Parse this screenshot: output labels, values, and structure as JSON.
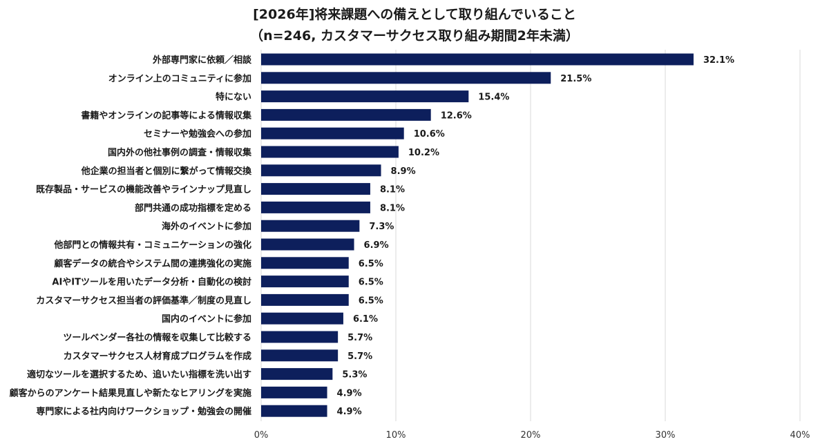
{
  "chart_data": {
    "type": "bar",
    "orientation": "horizontal",
    "title": "[2026年]将来課題への備えとして取り組んでいること",
    "subtitle": "（n=246, カスタマーサクセス取り組み期間2年未満）",
    "categories": [
      "外部専門家に依頼／相談",
      "オンライン上のコミュニティに参加",
      "特にない",
      "書籍やオンラインの記事等による情報収集",
      "セミナーや勉強会への参加",
      "国内外の他社事例の調査・情報収集",
      "他企業の担当者と個別に繋がって情報交換",
      "既存製品・サービスの機能改善やラインナップ見直し",
      "部門共通の成功指標を定める",
      "海外のイベントに参加",
      "他部門との情報共有・コミュニケーションの強化",
      "顧客データの統合やシステム間の連携強化の実施",
      "AIやITツールを用いたデータ分析・自動化の検討",
      "カスタマーサクセス担当者の評価基準／制度の見直し",
      "国内のイベントに参加",
      "ツールベンダー各社の情報を収集して比較する",
      "カスタマーサクセス人材育成プログラムを作成",
      "適切なツールを選択するため、追いたい指標を洗い出す",
      "顧客からのアンケート結果見直しや新たなヒアリングを実施",
      "専門家による社内向けワークショップ・勉強会の開催"
    ],
    "values": [
      32.1,
      21.5,
      15.4,
      12.6,
      10.6,
      10.2,
      8.9,
      8.1,
      8.1,
      7.3,
      6.9,
      6.5,
      6.5,
      6.5,
      6.1,
      5.7,
      5.7,
      5.3,
      4.9,
      4.9
    ],
    "value_labels": [
      "32.1%",
      "21.5%",
      "15.4%",
      "12.6%",
      "10.6%",
      "10.2%",
      "8.9%",
      "8.1%",
      "8.1%",
      "7.3%",
      "6.9%",
      "6.5%",
      "6.5%",
      "6.5%",
      "6.1%",
      "5.7%",
      "5.7%",
      "5.3%",
      "4.9%",
      "4.9%"
    ],
    "x_ticks": [
      0,
      10,
      20,
      30,
      40
    ],
    "x_tick_labels": [
      "0%",
      "10%",
      "20%",
      "30%",
      "40%"
    ],
    "xlim": [
      0,
      40
    ],
    "grid": true,
    "bar_color": "#0d1f5c",
    "grid_color": "#d9d9d9"
  }
}
